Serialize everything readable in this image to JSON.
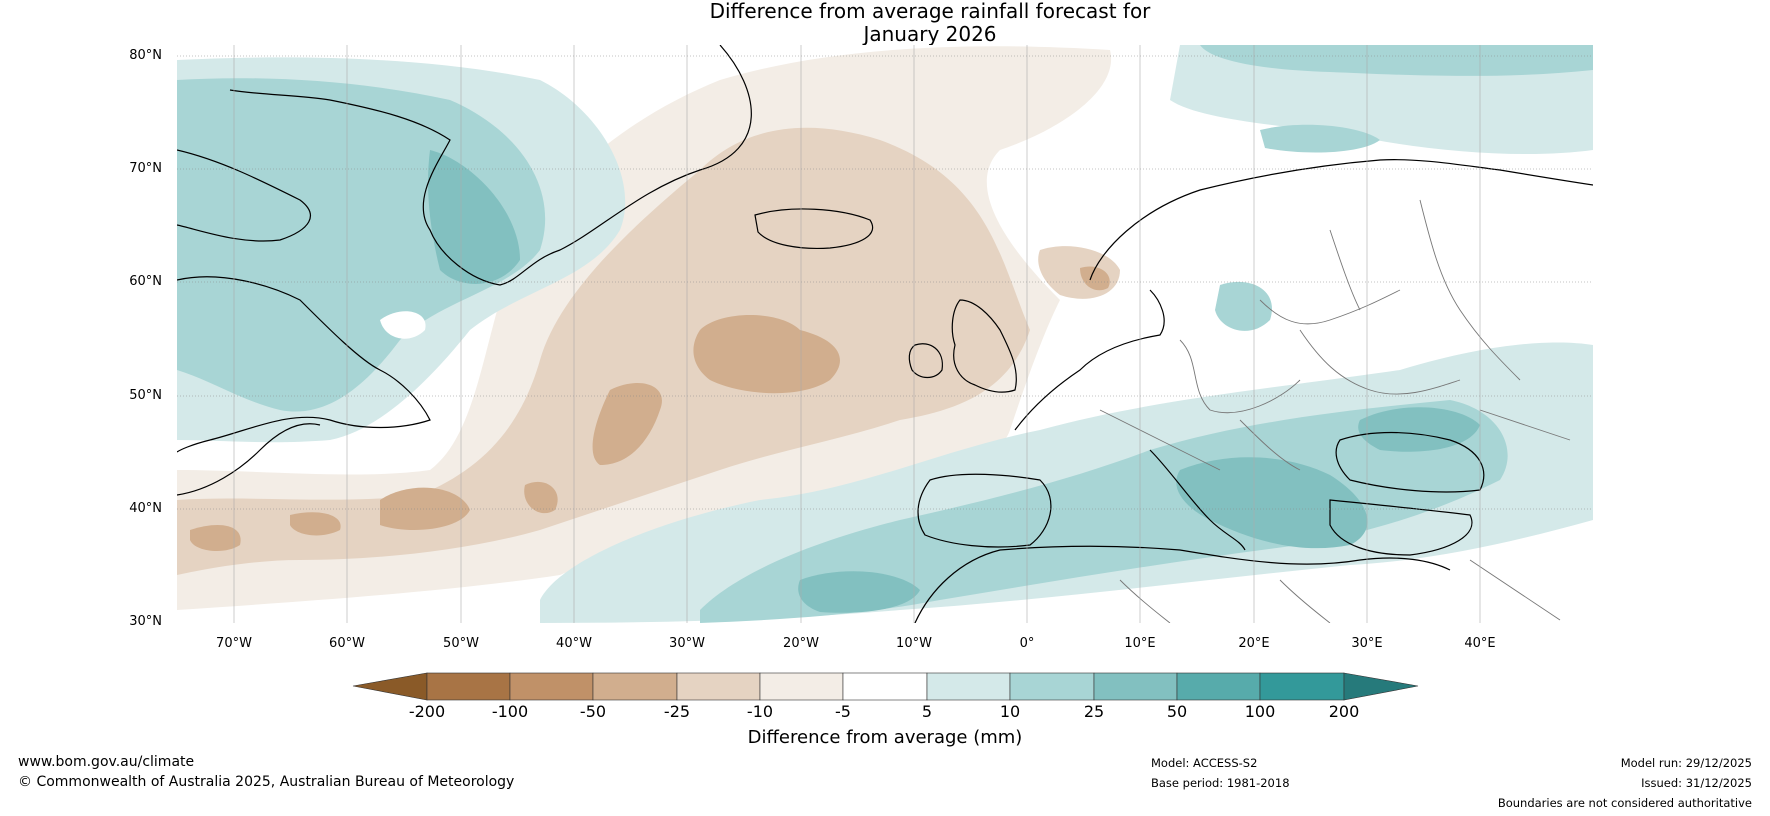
{
  "title_line1": "Difference from average rainfall forecast for",
  "title_line2": "January 2026",
  "latitude_labels": [
    "80°N",
    "70°N",
    "60°N",
    "50°N",
    "40°N",
    "30°N"
  ],
  "longitude_labels": [
    "70°W",
    "60°W",
    "50°W",
    "40°W",
    "30°W",
    "20°W",
    "10°W",
    "0°",
    "10°E",
    "20°E",
    "30°E",
    "40°E"
  ],
  "map_extent": {
    "lon_min": -75,
    "lon_max": 50,
    "lat_min": 30,
    "lat_max": 81
  },
  "colorbar": {
    "title": "Difference from average (mm)",
    "tick_labels": [
      "-200",
      "-100",
      "-50",
      "-25",
      "-10",
      "-5",
      "5",
      "10",
      "25",
      "50",
      "100",
      "200"
    ],
    "colors": {
      "lt_neg200": "#8a5a28",
      "neg200_neg100": "#a87445",
      "neg100_neg50": "#c09168",
      "neg50_neg25": "#d1ae8e",
      "neg25_neg10": "#e5d3c2",
      "neg10_neg5": "#f3ede6",
      "neg5_5": "#ffffff",
      "p5_10": "#d4e9e9",
      "p10_25": "#a8d5d5",
      "p25_50": "#82c0c0",
      "p50_100": "#57abab",
      "p100_200": "#33999a",
      "gt_200": "#267a7b"
    }
  },
  "footer": {
    "website": "www.bom.gov.au/climate",
    "copyright": "© Commonwealth of Australia 2025, Australian Bureau of Meteorology",
    "model": "Model: ACCESS-S2",
    "base_period": "Base period: 1981-2018",
    "model_run": "Model run: 29/12/2025",
    "issued": "Issued: 31/12/2025",
    "disclaimer": "Boundaries are not considered authoritative"
  }
}
